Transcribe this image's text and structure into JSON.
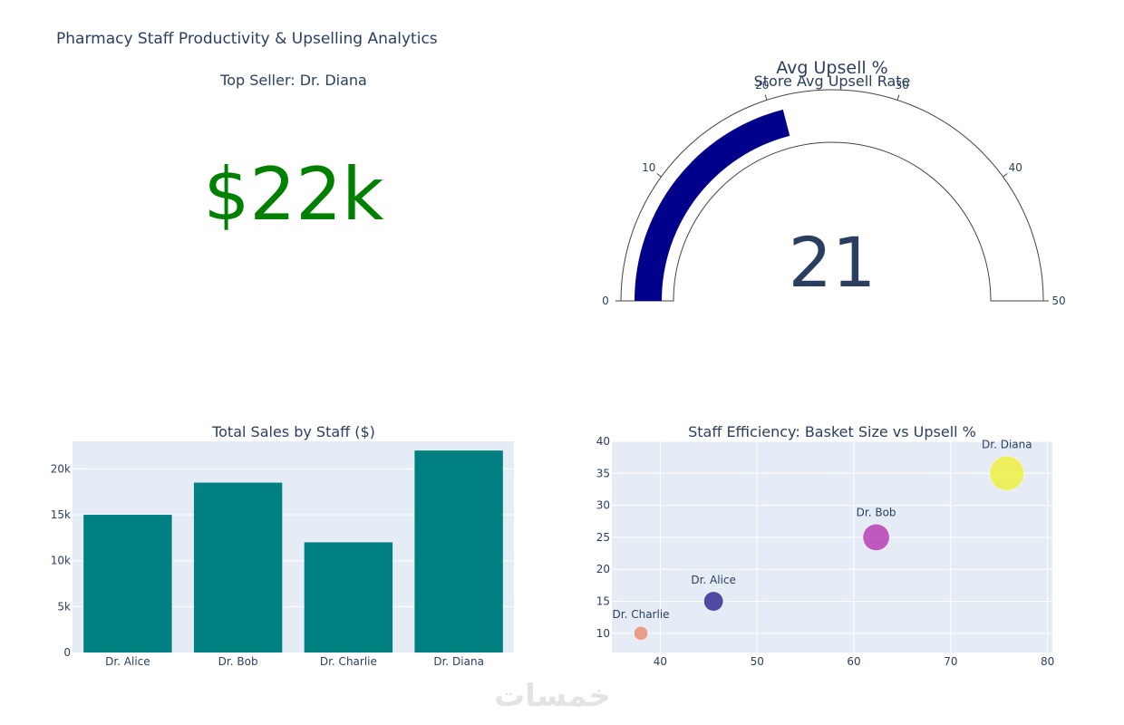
{
  "dashboard": {
    "title": "Pharmacy Staff Productivity & Upselling Analytics"
  },
  "chart_data": [
    {
      "type": "indicator",
      "title": "Top Seller: Dr. Diana",
      "value": 22000,
      "display": "$22k",
      "color": "#008000"
    },
    {
      "type": "gauge",
      "header": "Avg Upsell %",
      "title": "Store Avg Upsell Rate",
      "value": 21,
      "range": [
        0,
        50
      ],
      "ticks": [
        0,
        10,
        20,
        30,
        40,
        50
      ],
      "bar_color": "#00008b"
    },
    {
      "type": "bar",
      "title": "Total Sales by Staff ($)",
      "categories": [
        "Dr. Alice",
        "Dr. Bob",
        "Dr. Charlie",
        "Dr. Diana"
      ],
      "values": [
        15000,
        18500,
        12000,
        22000
      ],
      "ylim": [
        0,
        23000
      ],
      "yticks": [
        0,
        5000,
        10000,
        15000,
        20000
      ],
      "ytick_labels": [
        "0",
        "5k",
        "10k",
        "15k",
        "20k"
      ],
      "color": "#008080",
      "grid": true
    },
    {
      "type": "scatter",
      "title": "Staff Efficiency: Basket Size vs Upsell %",
      "points": [
        {
          "label": "Dr. Charlie",
          "x": 38,
          "y": 10,
          "size": 12000,
          "color": "#e8967a"
        },
        {
          "label": "Dr. Alice",
          "x": 45.5,
          "y": 15,
          "size": 15000,
          "color": "#3e3a9a"
        },
        {
          "label": "Dr. Bob",
          "x": 62.3,
          "y": 25,
          "size": 18500,
          "color": "#bb4ab8"
        },
        {
          "label": "Dr. Diana",
          "x": 75.8,
          "y": 35,
          "size": 22000,
          "color": "#eef04e"
        }
      ],
      "xlim": [
        35,
        80.5
      ],
      "ylim": [
        7,
        40
      ],
      "xticks": [
        40,
        50,
        60,
        70,
        80
      ],
      "yticks": [
        10,
        15,
        20,
        25,
        30,
        35,
        40
      ],
      "grid": true
    }
  ],
  "watermark": "خمسات"
}
